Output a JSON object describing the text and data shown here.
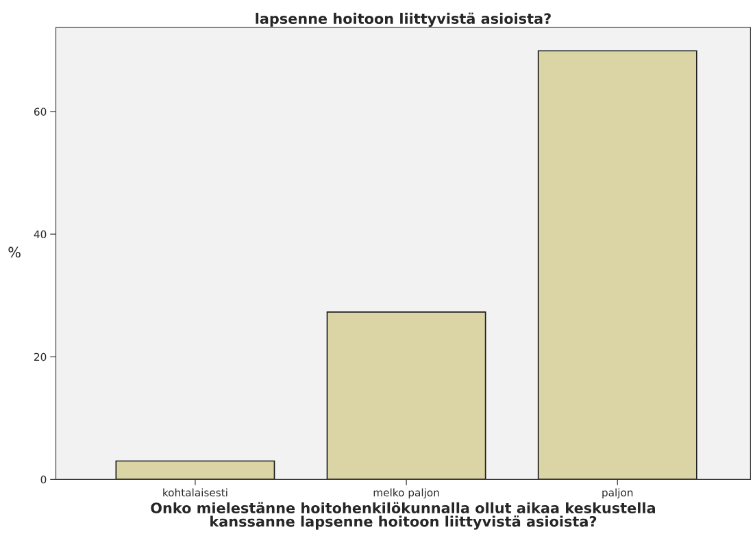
{
  "chart_data": {
    "type": "bar",
    "title": "lapsenne hoitoon liittyvistä asioista?",
    "xlabel": "Onko mielestänne hoitohenkilökunnalla ollut aikaa keskustella\nkanssanne lapsenne hoitoon liittyvistä asioista?",
    "ylabel": "%",
    "categories": [
      "kohtalaisesti",
      "melko paljon",
      "paljon"
    ],
    "values": [
      3.0,
      27.3,
      69.9
    ],
    "color": "#dbd4a5",
    "ylim": [
      0,
      73.7
    ],
    "yticks": [
      0,
      20,
      40,
      60
    ],
    "grid": false
  }
}
